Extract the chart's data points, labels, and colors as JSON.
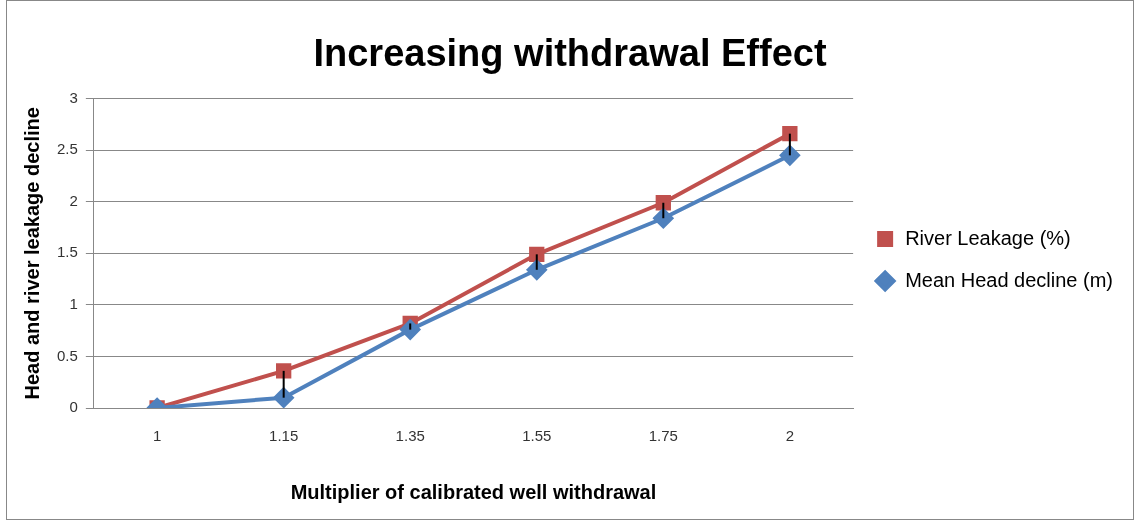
{
  "chart_data": {
    "type": "line",
    "title": "Increasing withdrawal Effect",
    "xlabel": "Multiplier of calibrated well withdrawal",
    "ylabel": "Head and river leakage decline",
    "categories": [
      "1",
      "1.15",
      "1.35",
      "1.55",
      "1.75",
      "2"
    ],
    "series": [
      {
        "name": "River Leakage (%)",
        "color": "#c0504d",
        "marker": "square",
        "values": [
          0,
          0.36,
          0.82,
          1.49,
          1.99,
          2.66
        ]
      },
      {
        "name": "Mean Head decline (m)",
        "color": "#4f81bd",
        "marker": "diamond",
        "values": [
          0,
          0.1,
          0.76,
          1.34,
          1.84,
          2.45
        ],
        "errors": [
          null,
          [
            0.1,
            0.36
          ],
          [
            0.76,
            0.82
          ],
          [
            1.34,
            1.49
          ],
          [
            1.84,
            1.99
          ],
          [
            2.45,
            2.66
          ]
        ]
      }
    ],
    "ylim": [
      0,
      3
    ],
    "yticks": [
      0,
      0.5,
      1,
      1.5,
      2,
      2.5,
      3
    ],
    "grid": "y",
    "legend": "right"
  }
}
